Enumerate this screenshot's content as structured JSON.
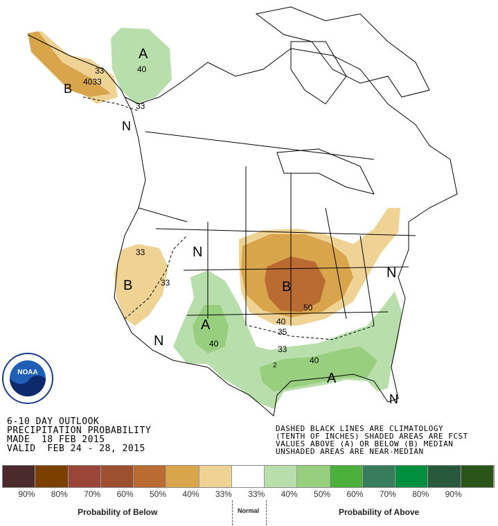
{
  "title_block": {
    "line1": "6-10 DAY OUTLOOK",
    "line2": "PRECIPITATION PROBABILITY",
    "line3": "MADE  18 FEB 2015",
    "line4": "VALID  FEB 24 - 28, 2015"
  },
  "note_block": {
    "line1": "DASHED BLACK LINES ARE CLIMATOLOGY",
    "line2": "(TENTH OF INCHES) SHADED AREAS ARE FCST",
    "line3": "VALUES ABOVE (A) OR BELOW (B) MEDIAN",
    "line4": "UNSHADED AREAS ARE NEAR-MEDIAN"
  },
  "logo_text": "NOAA",
  "map_labels": {
    "alaska_a": "A",
    "alaska_a_40": "40",
    "alaska_b": "B",
    "alaska_33a": "33",
    "alaska_4033": "4033",
    "alaska_33b": "33",
    "alaska_n": "N",
    "west_b": "B",
    "west_33a": "33",
    "west_33b": "33",
    "montana_n": "N",
    "southwest_n": "N",
    "nm_a": "A",
    "nm_40": "40",
    "midwest_b": "B",
    "midwest_50": "50",
    "midwest_40": "40",
    "midwest_35": "35",
    "midwest_33": "33",
    "east_n": "N",
    "se_a": "A",
    "se_40": "40",
    "florida_n": "N",
    "gulf_2": "2"
  },
  "legend": {
    "colors": [
      "#4b2a2c",
      "#7b3f00",
      "#9a4538",
      "#9c5030",
      "#b96b32",
      "#d9a54c",
      "#efd394",
      "#ffffff",
      "#b8deab",
      "#97cf7e",
      "#4bb03b",
      "#377d5b",
      "#00903f",
      "#28593d",
      "#2b541b"
    ],
    "ticks": [
      "90%",
      "80%",
      "70%",
      "60%",
      "50%",
      "40%",
      "33%",
      "33%",
      "40%",
      "50%",
      "60%",
      "70%",
      "80%",
      "90%"
    ],
    "below_label": "Probability of Below",
    "normal_label": "Normal",
    "above_label": "Probability of Above"
  }
}
